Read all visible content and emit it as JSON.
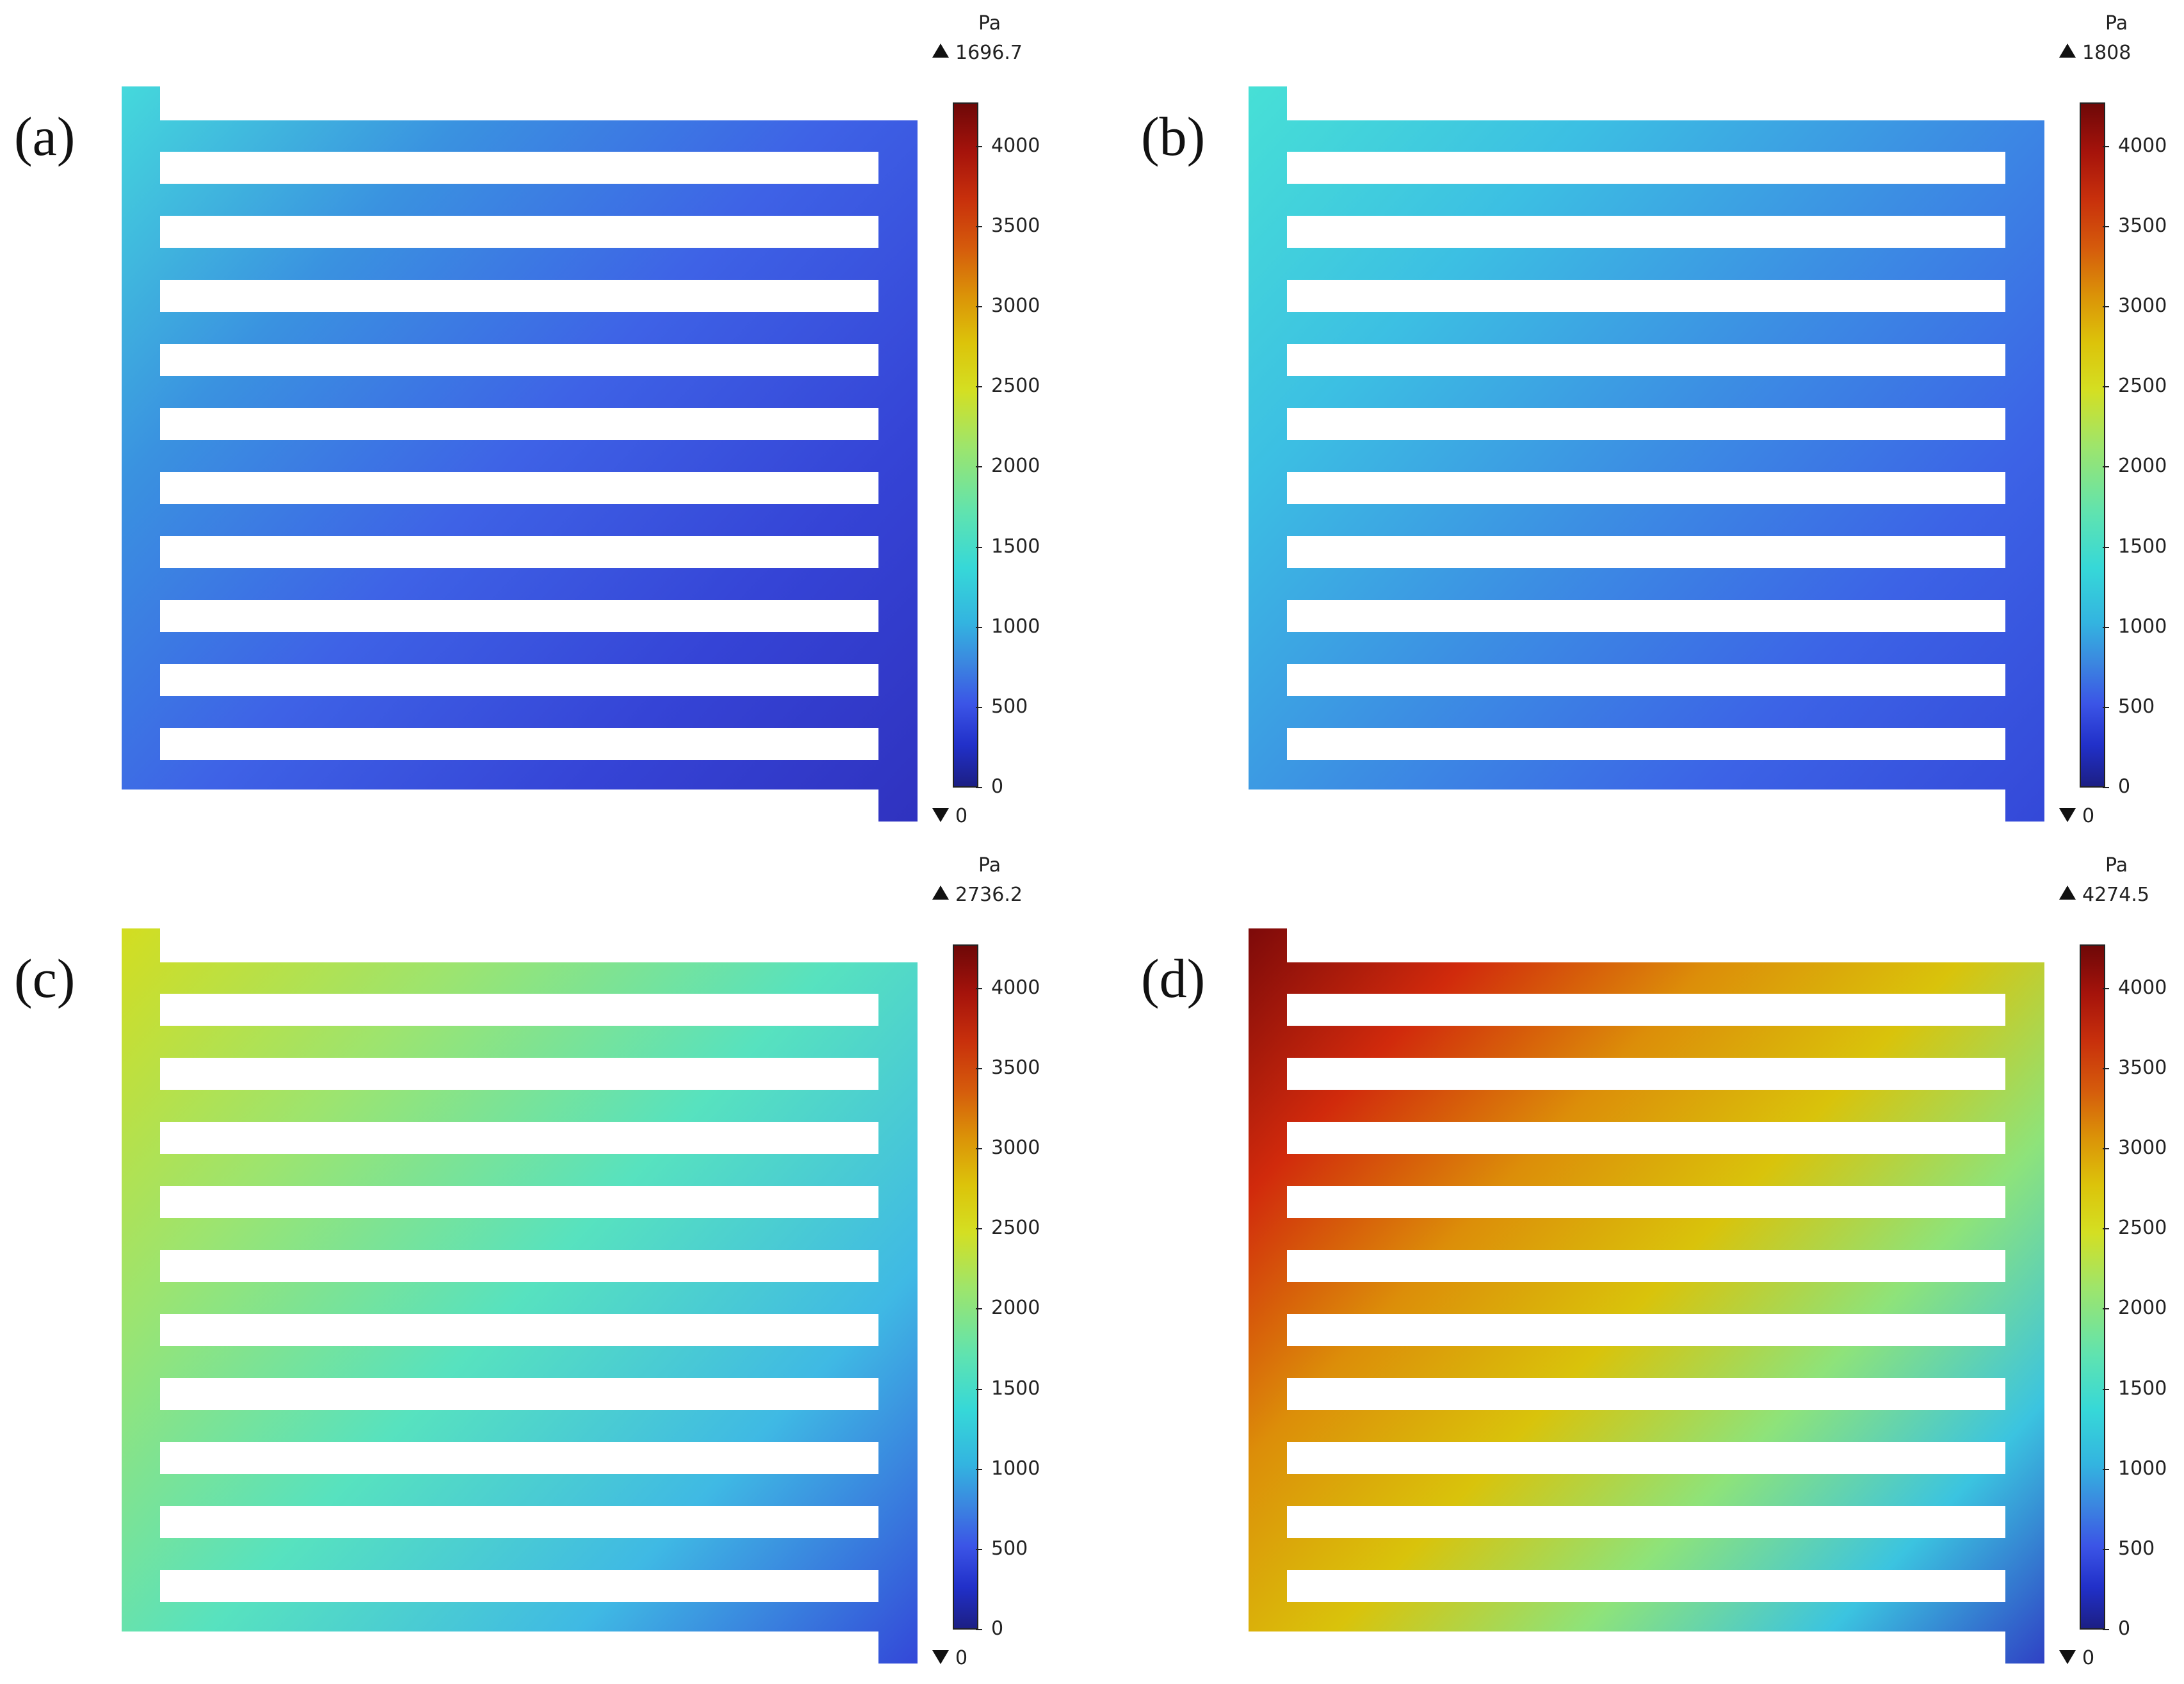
{
  "colorbar": {
    "unit": "Pa",
    "ticks": [
      "4000",
      "3500",
      "3000",
      "2500",
      "2000",
      "1500",
      "1000",
      "500",
      "0"
    ]
  },
  "panels": [
    {
      "label": "(a)",
      "max": "1696.7",
      "min": "0",
      "gradient": [
        "#45d9dc",
        "#3a92e0",
        "#3e62e6",
        "#3544d6",
        "#2f32bf"
      ]
    },
    {
      "label": "(b)",
      "max": "1808",
      "min": "0",
      "gradient": [
        "#47e0d6",
        "#3cbfe3",
        "#3c8fe3",
        "#3c63e6",
        "#3448d8"
      ]
    },
    {
      "label": "(c)",
      "max": "2736.2",
      "min": "0",
      "gradient": [
        "#d3dd20",
        "#9ce470",
        "#57e2bf",
        "#3fb9e4",
        "#3347d8"
      ]
    },
    {
      "label": "(d)",
      "max": "4274.5",
      "min": "0",
      "gradient": [
        "#7d0a0a",
        "#d12a0c",
        "#dc8e09",
        "#d9c30b",
        "#8ee37a",
        "#3bc4e0",
        "#2f40c4"
      ]
    }
  ]
}
